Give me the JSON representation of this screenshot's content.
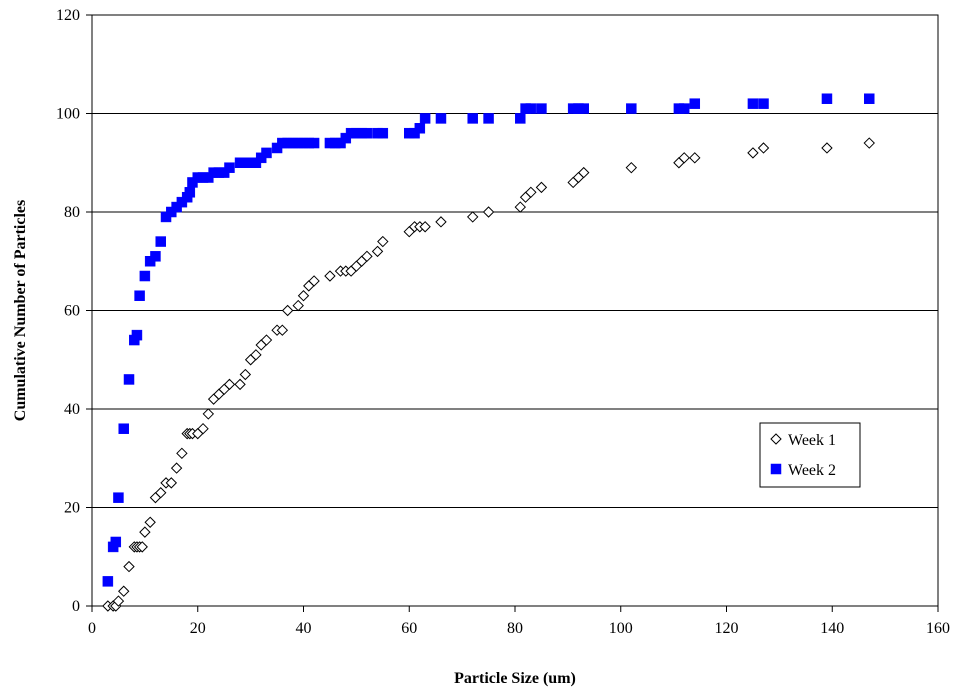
{
  "chart_data": {
    "type": "scatter",
    "title": "",
    "xlabel": "Particle Size (um)",
    "ylabel": "Cumulative Number of Particles",
    "xlim": [
      0,
      160
    ],
    "ylim": [
      0,
      120
    ],
    "xticks": [
      "0",
      "20",
      "40",
      "60",
      "80",
      "100",
      "120",
      "140",
      "160"
    ],
    "yticks": [
      "0",
      "20",
      "40",
      "60",
      "80",
      "100",
      "120"
    ],
    "grid": "horizontal",
    "legend_position": "right",
    "series": [
      {
        "name": "Week 1",
        "marker": "diamond-open",
        "color": "#000000",
        "points": [
          [
            3,
            0
          ],
          [
            4,
            0
          ],
          [
            4.5,
            0
          ],
          [
            5,
            1
          ],
          [
            6,
            3
          ],
          [
            7,
            8
          ],
          [
            8,
            12
          ],
          [
            8.5,
            12
          ],
          [
            9,
            12
          ],
          [
            9.5,
            12
          ],
          [
            10,
            15
          ],
          [
            11,
            17
          ],
          [
            12,
            22
          ],
          [
            13,
            23
          ],
          [
            14,
            25
          ],
          [
            15,
            25
          ],
          [
            16,
            28
          ],
          [
            17,
            31
          ],
          [
            18,
            35
          ],
          [
            18.5,
            35
          ],
          [
            19,
            35
          ],
          [
            20,
            35
          ],
          [
            21,
            36
          ],
          [
            22,
            39
          ],
          [
            23,
            42
          ],
          [
            24,
            43
          ],
          [
            25,
            44
          ],
          [
            26,
            45
          ],
          [
            28,
            45
          ],
          [
            29,
            47
          ],
          [
            30,
            50
          ],
          [
            31,
            51
          ],
          [
            32,
            53
          ],
          [
            33,
            54
          ],
          [
            35,
            56
          ],
          [
            36,
            56
          ],
          [
            37,
            60
          ],
          [
            39,
            61
          ],
          [
            40,
            63
          ],
          [
            41,
            65
          ],
          [
            42,
            66
          ],
          [
            45,
            67
          ],
          [
            47,
            68
          ],
          [
            48,
            68
          ],
          [
            49,
            68
          ],
          [
            50,
            69
          ],
          [
            51,
            70
          ],
          [
            52,
            71
          ],
          [
            54,
            72
          ],
          [
            55,
            74
          ],
          [
            60,
            76
          ],
          [
            61,
            77
          ],
          [
            62,
            77
          ],
          [
            63,
            77
          ],
          [
            66,
            78
          ],
          [
            72,
            79
          ],
          [
            75,
            80
          ],
          [
            81,
            81
          ],
          [
            82,
            83
          ],
          [
            83,
            84
          ],
          [
            85,
            85
          ],
          [
            91,
            86
          ],
          [
            92,
            87
          ],
          [
            93,
            88
          ],
          [
            102,
            89
          ],
          [
            111,
            90
          ],
          [
            112,
            91
          ],
          [
            114,
            91
          ],
          [
            125,
            92
          ],
          [
            127,
            93
          ],
          [
            139,
            93
          ],
          [
            147,
            94
          ]
        ]
      },
      {
        "name": "Week 2",
        "marker": "square-filled",
        "color": "#0000FF",
        "points": [
          [
            3,
            5
          ],
          [
            4,
            12
          ],
          [
            4.5,
            13
          ],
          [
            5,
            22
          ],
          [
            6,
            36
          ],
          [
            7,
            46
          ],
          [
            8,
            54
          ],
          [
            8.5,
            55
          ],
          [
            9,
            63
          ],
          [
            10,
            67
          ],
          [
            11,
            70
          ],
          [
            12,
            71
          ],
          [
            13,
            74
          ],
          [
            14,
            79
          ],
          [
            15,
            80
          ],
          [
            16,
            81
          ],
          [
            17,
            82
          ],
          [
            18,
            83
          ],
          [
            18.5,
            84
          ],
          [
            19,
            86
          ],
          [
            20,
            87
          ],
          [
            21,
            87
          ],
          [
            22,
            87
          ],
          [
            23,
            88
          ],
          [
            24,
            88
          ],
          [
            25,
            88
          ],
          [
            26,
            89
          ],
          [
            28,
            90
          ],
          [
            29,
            90
          ],
          [
            30,
            90
          ],
          [
            31,
            90
          ],
          [
            32,
            91
          ],
          [
            33,
            92
          ],
          [
            35,
            93
          ],
          [
            36,
            94
          ],
          [
            37,
            94
          ],
          [
            38,
            94
          ],
          [
            39,
            94
          ],
          [
            40,
            94
          ],
          [
            41,
            94
          ],
          [
            42,
            94
          ],
          [
            45,
            94
          ],
          [
            46,
            94
          ],
          [
            47,
            94
          ],
          [
            48,
            95
          ],
          [
            49,
            96
          ],
          [
            50,
            96
          ],
          [
            51,
            96
          ],
          [
            52,
            96
          ],
          [
            54,
            96
          ],
          [
            55,
            96
          ],
          [
            60,
            96
          ],
          [
            61,
            96
          ],
          [
            62,
            97
          ],
          [
            63,
            99
          ],
          [
            66,
            99
          ],
          [
            72,
            99
          ],
          [
            75,
            99
          ],
          [
            81,
            99
          ],
          [
            82,
            101
          ],
          [
            83,
            101
          ],
          [
            85,
            101
          ],
          [
            91,
            101
          ],
          [
            92,
            101
          ],
          [
            93,
            101
          ],
          [
            102,
            101
          ],
          [
            111,
            101
          ],
          [
            112,
            101
          ],
          [
            114,
            102
          ],
          [
            125,
            102
          ],
          [
            127,
            102
          ],
          [
            139,
            103
          ],
          [
            147,
            103
          ]
        ]
      }
    ]
  }
}
